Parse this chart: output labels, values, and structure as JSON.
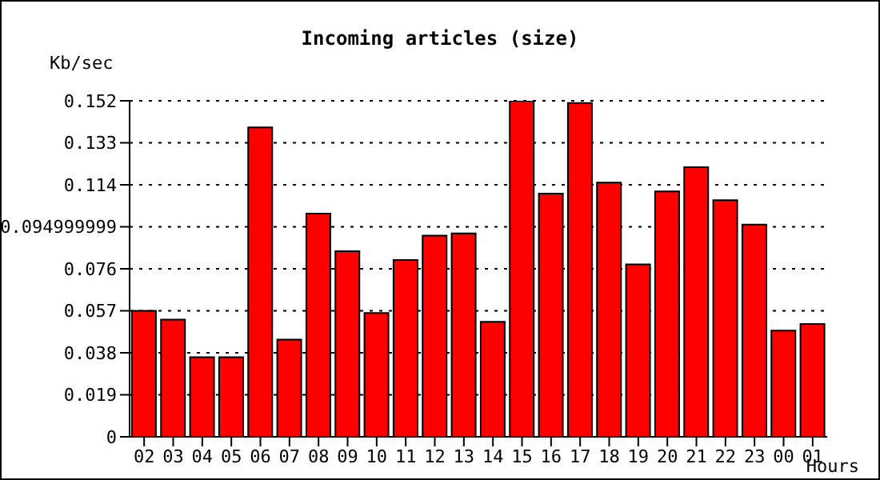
{
  "chart_data": {
    "type": "bar",
    "title": "Incoming articles (size)",
    "ylabel": "Kb/sec",
    "xlabel": "Hours",
    "categories": [
      "02",
      "03",
      "04",
      "05",
      "06",
      "07",
      "08",
      "09",
      "10",
      "11",
      "12",
      "13",
      "14",
      "15",
      "16",
      "17",
      "18",
      "19",
      "20",
      "21",
      "22",
      "23",
      "00",
      "01"
    ],
    "values": [
      0.057,
      0.053,
      0.036,
      0.036,
      0.14,
      0.044,
      0.101,
      0.084,
      0.056,
      0.08,
      0.091,
      0.092,
      0.052,
      0.152,
      0.11,
      0.151,
      0.115,
      0.078,
      0.111,
      0.122,
      0.107,
      0.096,
      0.048,
      0.051
    ],
    "color": "#ff0000",
    "ylim": [
      0,
      0.152
    ],
    "yticks": [
      0,
      0.019,
      0.038,
      0.057,
      0.076,
      0.094999999,
      0.114,
      0.133,
      0.152
    ],
    "grid": "y",
    "legend": false
  }
}
